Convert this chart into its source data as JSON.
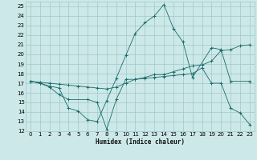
{
  "title": "",
  "xlabel": "Humidex (Indice chaleur)",
  "ylabel": "",
  "xlim": [
    -0.5,
    23.5
  ],
  "ylim": [
    12,
    25.5
  ],
  "yticks": [
    12,
    13,
    14,
    15,
    16,
    17,
    18,
    19,
    20,
    21,
    22,
    23,
    24,
    25
  ],
  "xticks": [
    0,
    1,
    2,
    3,
    4,
    5,
    6,
    7,
    8,
    9,
    10,
    11,
    12,
    13,
    14,
    15,
    16,
    17,
    18,
    19,
    20,
    21,
    22,
    23
  ],
  "background_color": "#cde8e8",
  "grid_color": "#9ec8c8",
  "line_color": "#1a6b6b",
  "line1_x": [
    0,
    1,
    2,
    3,
    4,
    6,
    7,
    8,
    9,
    10,
    11,
    12,
    13,
    14,
    15,
    16,
    17,
    18,
    19,
    20,
    21,
    22,
    23
  ],
  "line1_y": [
    17.2,
    17.0,
    16.6,
    15.8,
    15.3,
    15.3,
    15.0,
    12.2,
    15.3,
    17.4,
    17.4,
    17.5,
    17.6,
    17.7,
    17.8,
    17.9,
    18.0,
    18.6,
    17.0,
    17.0,
    14.4,
    13.9,
    12.7
  ],
  "line2_x": [
    0,
    1,
    2,
    3,
    4,
    5,
    6,
    7,
    8,
    9,
    10,
    11,
    12,
    13,
    14,
    15,
    16,
    17,
    19,
    20,
    21,
    23
  ],
  "line2_y": [
    17.2,
    17.0,
    16.7,
    16.5,
    14.4,
    14.1,
    13.2,
    13.0,
    15.2,
    17.5,
    19.9,
    22.2,
    23.3,
    24.0,
    25.2,
    22.7,
    21.3,
    17.6,
    20.7,
    20.5,
    17.2,
    17.2
  ],
  "line3_x": [
    0,
    1,
    2,
    3,
    4,
    5,
    6,
    7,
    8,
    9,
    10,
    11,
    12,
    13,
    14,
    15,
    16,
    17,
    18,
    19,
    20,
    21,
    22,
    23
  ],
  "line3_y": [
    17.2,
    17.1,
    17.0,
    16.9,
    16.8,
    16.7,
    16.6,
    16.5,
    16.4,
    16.6,
    17.0,
    17.4,
    17.6,
    17.9,
    17.9,
    18.2,
    18.5,
    18.8,
    18.9,
    19.3,
    20.4,
    20.5,
    20.9,
    21.0
  ]
}
